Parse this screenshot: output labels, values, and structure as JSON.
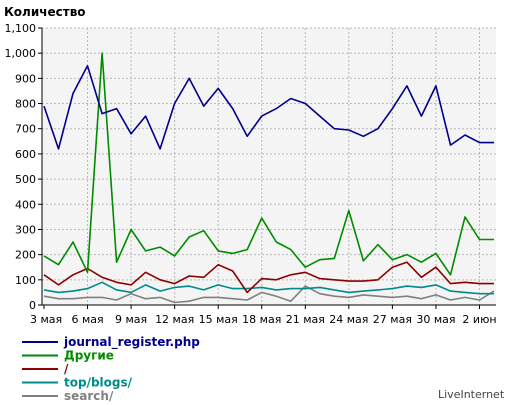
{
  "chart_data": {
    "type": "line",
    "ylabel": "Количество",
    "ylim": [
      0,
      1100
    ],
    "yticks": [
      0,
      100,
      200,
      300,
      400,
      500,
      600,
      700,
      800,
      900,
      1000,
      1100
    ],
    "ytick_labels": [
      "0",
      "100",
      "200",
      "300",
      "400",
      "500",
      "600",
      "700",
      "800",
      "900",
      "1,000",
      "1,100"
    ],
    "x_count": 32,
    "x_tick_labels": [
      {
        "i": 0,
        "label": "3 мая"
      },
      {
        "i": 3,
        "label": "6 мая"
      },
      {
        "i": 6,
        "label": "9 мая"
      },
      {
        "i": 9,
        "label": "12 мая"
      },
      {
        "i": 12,
        "label": "15 мая"
      },
      {
        "i": 15,
        "label": "18 мая"
      },
      {
        "i": 18,
        "label": "21 мая"
      },
      {
        "i": 21,
        "label": "24 мая"
      },
      {
        "i": 24,
        "label": "27 мая"
      },
      {
        "i": 27,
        "label": "30 мая"
      },
      {
        "i": 30,
        "label": "2 июн"
      }
    ],
    "grid": true,
    "legend_position": "bottom-left",
    "series": [
      {
        "name": "journal_register.php",
        "color": "#00008b",
        "values": [
          790,
          620,
          840,
          950,
          760,
          780,
          680,
          750,
          620,
          800,
          900,
          790,
          860,
          780,
          670,
          750,
          780,
          820,
          800,
          750,
          700,
          695,
          670,
          700,
          780,
          870,
          750,
          870,
          635,
          675,
          645,
          645
        ]
      },
      {
        "name": "Другие",
        "color": "#008b00",
        "values": [
          195,
          160,
          250,
          130,
          1000,
          170,
          300,
          215,
          230,
          195,
          270,
          295,
          215,
          205,
          220,
          345,
          250,
          220,
          150,
          180,
          185,
          375,
          175,
          240,
          180,
          200,
          170,
          205,
          120,
          350,
          260,
          260
        ]
      },
      {
        "name": "/",
        "color": "#8b0000",
        "values": [
          120,
          80,
          120,
          145,
          110,
          90,
          80,
          130,
          100,
          85,
          115,
          110,
          160,
          135,
          50,
          105,
          100,
          120,
          130,
          105,
          100,
          95,
          95,
          100,
          150,
          170,
          110,
          150,
          85,
          90,
          85,
          85
        ]
      },
      {
        "name": "top/blogs/",
        "color": "#008b8b",
        "values": [
          60,
          50,
          55,
          65,
          90,
          60,
          50,
          80,
          55,
          70,
          75,
          60,
          80,
          65,
          65,
          70,
          60,
          65,
          65,
          70,
          60,
          50,
          55,
          60,
          65,
          75,
          70,
          80,
          55,
          50,
          45,
          45
        ]
      },
      {
        "name": "search/",
        "color": "#808080",
        "values": [
          35,
          25,
          25,
          30,
          30,
          20,
          45,
          25,
          30,
          10,
          15,
          30,
          30,
          25,
          20,
          50,
          35,
          15,
          75,
          45,
          35,
          30,
          40,
          35,
          30,
          35,
          25,
          40,
          20,
          30,
          20,
          55
        ]
      }
    ],
    "brand": "LiveInternet"
  }
}
